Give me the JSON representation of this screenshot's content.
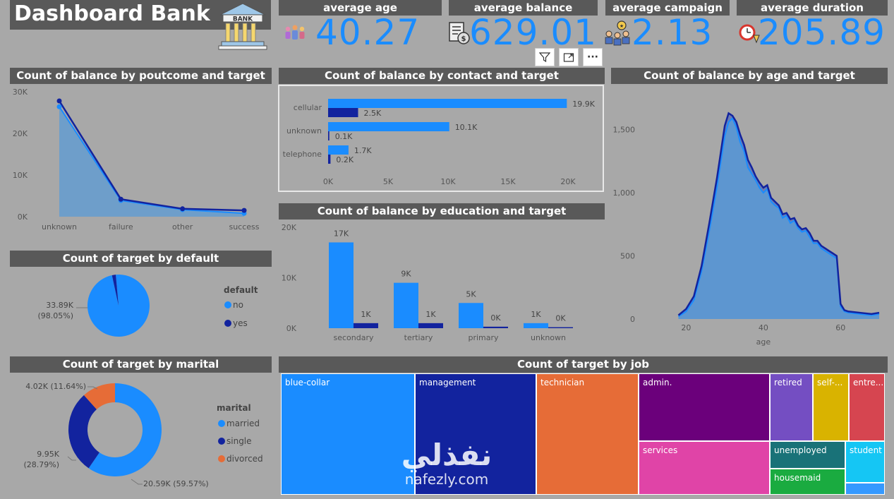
{
  "title": "Dashboard Bank",
  "kpis": [
    {
      "label": "average age",
      "value": "40.27",
      "icon": "people-icon"
    },
    {
      "label": "average balance",
      "value": "629.01",
      "icon": "money-doc-icon"
    },
    {
      "label": "average campaign",
      "value": "2.13",
      "icon": "team-award-icon"
    },
    {
      "label": "average duration",
      "value": "205.89",
      "icon": "clock-icon"
    }
  ],
  "visual_toolbar": {
    "filter": "filter-icon",
    "focus": "focus-mode-icon",
    "more": "more-options-icon",
    "more_label": "···"
  },
  "watermark": {
    "arabic": "نفذلي",
    "latin": "nafezly.com"
  },
  "colors": {
    "light_blue": "#1a8cff",
    "dark_blue": "#12239e",
    "orange": "#e66c37",
    "purple": "#6b007b",
    "pink": "#e044a7",
    "lavender": "#744ec2",
    "gold": "#d9b300",
    "red": "#d64550",
    "teal": "#197278",
    "green": "#1aab40",
    "cyan": "#15c6f4"
  },
  "chart_data": [
    {
      "id": "poutcome",
      "type": "area",
      "title": "Count of balance by poutcome and target",
      "categories": [
        "unknown",
        "failure",
        "other",
        "success"
      ],
      "ylim": [
        0,
        30000
      ],
      "yticks": [
        "0K",
        "10K",
        "20K",
        "30K"
      ],
      "series": [
        {
          "values": [
            26400,
            3900,
            1700,
            800
          ]
        },
        {
          "values": [
            27800,
            4200,
            1900,
            1500
          ]
        }
      ]
    },
    {
      "id": "contact",
      "type": "bar",
      "orientation": "horizontal",
      "title": "Count of balance by contact and target",
      "categories": [
        "cellular",
        "unknown",
        "telephone"
      ],
      "xlim": [
        0,
        20000
      ],
      "xticks": [
        "0K",
        "5K",
        "10K",
        "15K",
        "20K"
      ],
      "series": [
        {
          "values": [
            19900,
            10100,
            1700
          ],
          "labels": [
            "19.9K",
            "10.1K",
            "1.7K"
          ]
        },
        {
          "values": [
            2500,
            100,
            200
          ],
          "labels": [
            "2.5K",
            "0.1K",
            "0.2K"
          ]
        }
      ]
    },
    {
      "id": "education",
      "type": "bar",
      "title": "Count of balance by education and target",
      "categories": [
        "secondary",
        "tertiary",
        "primary",
        "unknown"
      ],
      "ylim": [
        0,
        20000
      ],
      "yticks": [
        "0K",
        "10K",
        "20K"
      ],
      "series": [
        {
          "values": [
            17000,
            9000,
            5000,
            1000
          ],
          "labels": [
            "17K",
            "9K",
            "5K",
            "1K"
          ]
        },
        {
          "values": [
            1000,
            1000,
            300,
            200
          ],
          "labels": [
            "1K",
            "1K",
            "0K",
            "0K"
          ]
        }
      ]
    },
    {
      "id": "age",
      "type": "area",
      "title": "Count of balance by age and target",
      "xlabel": "age",
      "xlim": [
        17,
        70
      ],
      "ylim": [
        0,
        1800
      ],
      "xticks": [
        20,
        40,
        60
      ],
      "yticks": [
        "0",
        "500",
        "1,000",
        "1,500"
      ],
      "x": [
        18,
        20,
        22,
        24,
        26,
        28,
        30,
        31,
        32,
        33,
        34,
        35,
        36,
        37,
        38,
        39,
        40,
        41,
        42,
        43,
        44,
        45,
        46,
        47,
        48,
        49,
        50,
        51,
        52,
        53,
        54,
        55,
        56,
        57,
        58,
        59,
        60,
        61,
        62,
        65,
        68,
        70
      ],
      "series": [
        {
          "values": [
            20,
            60,
            150,
            380,
            700,
            1050,
            1450,
            1560,
            1590,
            1520,
            1400,
            1330,
            1200,
            1150,
            1100,
            1040,
            1000,
            1030,
            930,
            900,
            880,
            800,
            820,
            760,
            780,
            720,
            690,
            700,
            650,
            600,
            600,
            560,
            540,
            520,
            500,
            480,
            100,
            60,
            50,
            40,
            30,
            40
          ]
        },
        {
          "values": [
            30,
            80,
            180,
            420,
            760,
            1120,
            1530,
            1630,
            1610,
            1560,
            1460,
            1380,
            1260,
            1200,
            1130,
            1080,
            1040,
            1060,
            960,
            930,
            900,
            830,
            840,
            790,
            800,
            740,
            710,
            720,
            680,
            620,
            620,
            580,
            560,
            540,
            520,
            500,
            120,
            70,
            60,
            50,
            40,
            50
          ]
        }
      ]
    },
    {
      "id": "default",
      "type": "pie",
      "title": "Count of target by default",
      "legend_title": "default",
      "slices": [
        {
          "label": "no",
          "value": 33890,
          "display": "33.89K",
          "pct": "(98.05%)"
        },
        {
          "label": "yes",
          "value": 674
        }
      ]
    },
    {
      "id": "marital",
      "type": "pie",
      "donut": true,
      "title": "Count of target by marital",
      "legend_title": "marital",
      "slices": [
        {
          "label": "married",
          "value": 20590,
          "display": "20.59K (59.57%)"
        },
        {
          "label": "single",
          "value": 9950,
          "display": "9.95K",
          "pct": "(28.79%)"
        },
        {
          "label": "divorced",
          "value": 4020,
          "display": "4.02K (11.64%)"
        }
      ]
    },
    {
      "id": "job",
      "type": "treemap",
      "title": "Count of target by job",
      "items": [
        {
          "label": "blue-collar"
        },
        {
          "label": "management"
        },
        {
          "label": "technician"
        },
        {
          "label": "admin."
        },
        {
          "label": "services"
        },
        {
          "label": "retired"
        },
        {
          "label": "self-..."
        },
        {
          "label": "entre..."
        },
        {
          "label": "unemployed"
        },
        {
          "label": "student"
        },
        {
          "label": "housemaid"
        }
      ]
    }
  ]
}
